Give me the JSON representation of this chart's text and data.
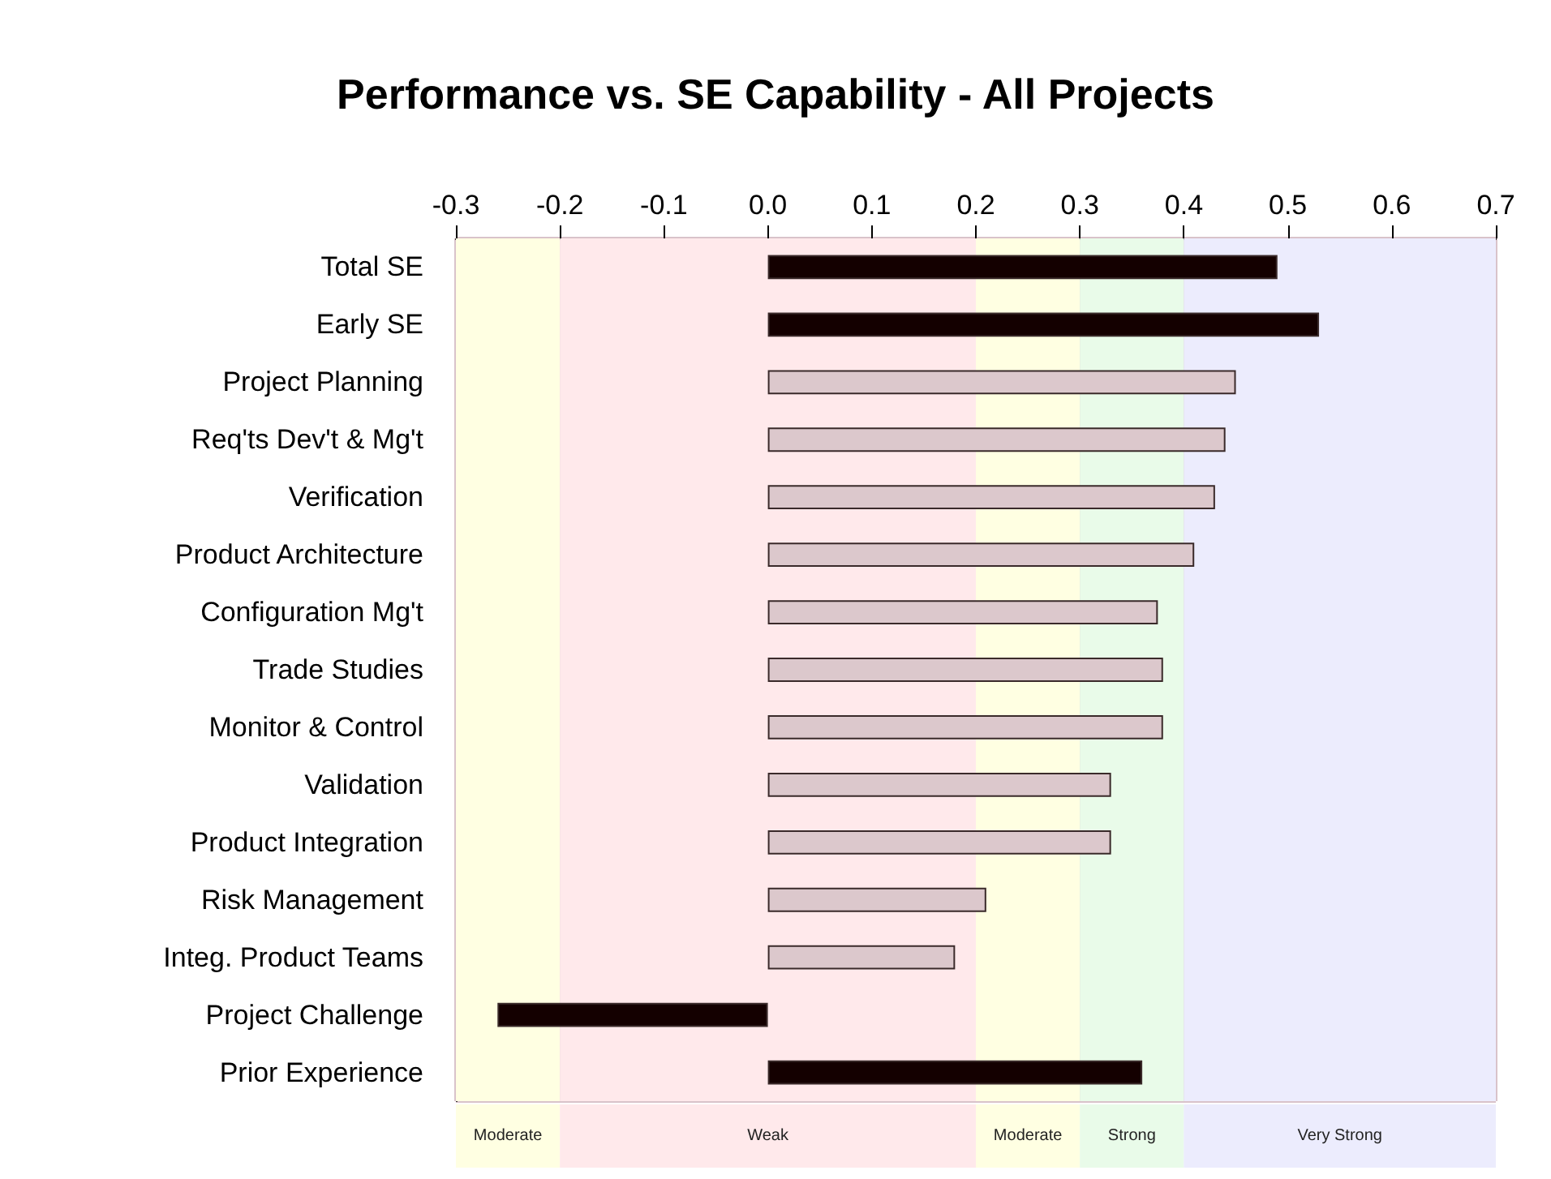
{
  "chart_data": {
    "type": "bar",
    "orientation": "horizontal",
    "title": "Performance vs. SE Capability - All Projects",
    "categories": [
      "Total SE",
      "Early SE",
      "Project Planning",
      "Req'ts Dev't & Mg't",
      "Verification",
      "Product Architecture",
      "Configuration Mg't",
      "Trade Studies",
      "Monitor & Control",
      "Validation",
      "Product Integration",
      "Risk Management",
      "Integ. Product Teams",
      "Project Challenge",
      "Prior Experience"
    ],
    "values": [
      0.49,
      0.53,
      0.45,
      0.44,
      0.43,
      0.41,
      0.375,
      0.38,
      0.38,
      0.33,
      0.33,
      0.21,
      0.18,
      -0.26,
      0.36
    ],
    "colors": [
      "#140000",
      "#140000",
      "#dcc8cc",
      "#dcc8cc",
      "#dcc8cc",
      "#dcc8cc",
      "#dcc8cc",
      "#dcc8cc",
      "#dcc8cc",
      "#dcc8cc",
      "#dcc8cc",
      "#dcc8cc",
      "#dcc8cc",
      "#140000",
      "#140000"
    ],
    "xlim": [
      -0.3,
      0.7
    ],
    "xticks": [
      {
        "value": -0.3,
        "label": "-0.3"
      },
      {
        "value": -0.2,
        "label": "-0.2"
      },
      {
        "value": -0.1,
        "label": "-0.1"
      },
      {
        "value": 0,
        "label": "0.0"
      },
      {
        "value": 0.1,
        "label": "0.1"
      },
      {
        "value": 0.2,
        "label": "0.2"
      },
      {
        "value": 0.3,
        "label": "0.3"
      },
      {
        "value": 0.4,
        "label": "0.4"
      },
      {
        "value": 0.5,
        "label": "0.5"
      },
      {
        "value": 0.6,
        "label": "0.6"
      },
      {
        "value": 0.7,
        "label": "0.7"
      }
    ],
    "bands": [
      {
        "axis": "x",
        "from": -0.3,
        "to": -0.2,
        "label": "Moderate",
        "color": "#ffffe2"
      },
      {
        "axis": "x",
        "from": -0.2,
        "to": 0.2,
        "label": "Weak",
        "color": "#ffe9eb"
      },
      {
        "axis": "x",
        "from": 0.2,
        "to": 0.3,
        "label": "Moderate",
        "color": "#ffffe2"
      },
      {
        "axis": "x",
        "from": 0.3,
        "to": 0.4,
        "label": "Strong",
        "color": "#e9fbe9"
      },
      {
        "axis": "x",
        "from": 0.4,
        "to": 0.7,
        "label": "Very Strong",
        "color": "#ececfd"
      }
    ],
    "grid": true
  }
}
